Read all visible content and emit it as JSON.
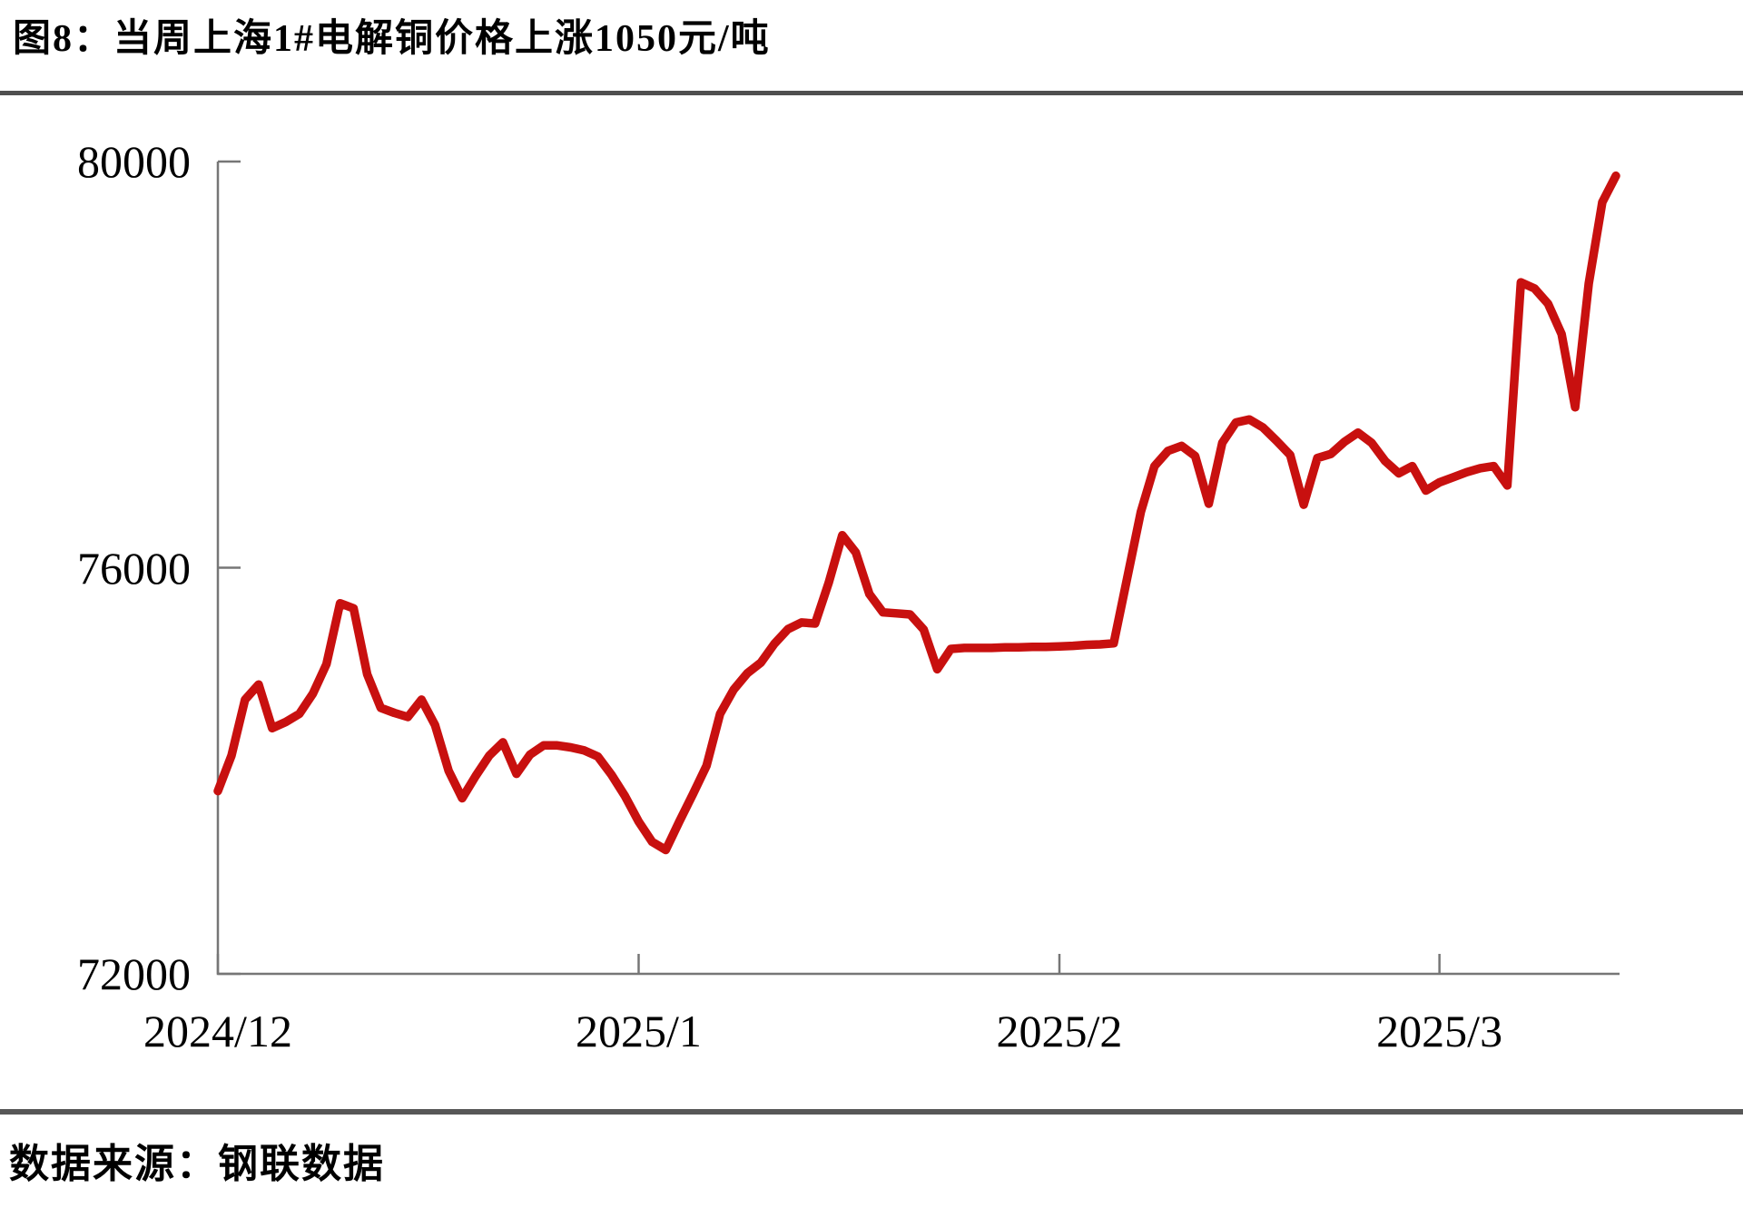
{
  "page": {
    "title": "图8：当周上海1#电解铜价格上涨1050元/吨",
    "source": "数据来源：钢联数据"
  },
  "colors": {
    "line": "#C8100F",
    "axis": "#767676",
    "divider": "#4F4F4F",
    "text": "#000000",
    "background": "#FFFFFF"
  },
  "chart_data": {
    "type": "line",
    "title": "当周上海1#电解铜价格上涨1050元/吨",
    "weekly_change_label": "上涨1050元/吨",
    "xlabel": "",
    "ylabel": "",
    "ylim": [
      72000,
      80000
    ],
    "y_ticks": [
      72000,
      76000,
      80000
    ],
    "x_ticks": [
      {
        "label": "2024/12",
        "day": 0
      },
      {
        "label": "2025/1",
        "day": 31
      },
      {
        "label": "2025/2",
        "day": 62
      },
      {
        "label": "2025/3",
        "day": 90
      }
    ],
    "x_domain_days": [
      0,
      103
    ],
    "start_date": "2024-12-01",
    "frequency": "daily",
    "grid": false,
    "legend_position": "none",
    "series": [
      {
        "name": "上海1#电解铜价格（元/吨）",
        "values": [
          73800,
          74150,
          74700,
          74850,
          74420,
          74480,
          74560,
          74760,
          75050,
          75650,
          75600,
          74950,
          74620,
          74570,
          74530,
          74700,
          74450,
          74000,
          73730,
          73950,
          74150,
          74280,
          73970,
          74160,
          74250,
          74250,
          74230,
          74200,
          74140,
          73960,
          73750,
          73500,
          73300,
          73220,
          73500,
          73770,
          74050,
          74560,
          74800,
          74960,
          75065,
          75250,
          75395,
          75460,
          75450,
          75850,
          76320,
          76150,
          75740,
          75560,
          75550,
          75540,
          75390,
          75000,
          75200,
          75210,
          75210,
          75210,
          75215,
          75215,
          75220,
          75220,
          75225,
          75230,
          75240,
          75245,
          75255,
          75900,
          76550,
          77000,
          77150,
          77200,
          77100,
          76630,
          77230,
          77430,
          77460,
          77380,
          77250,
          77110,
          76620,
          77080,
          77120,
          77240,
          77330,
          77230,
          77050,
          76930,
          77000,
          76760,
          76840,
          76890,
          76940,
          76980,
          77000,
          76810,
          78810,
          78750,
          78600,
          78300,
          77580,
          78800,
          79600,
          79860
        ]
      }
    ]
  }
}
